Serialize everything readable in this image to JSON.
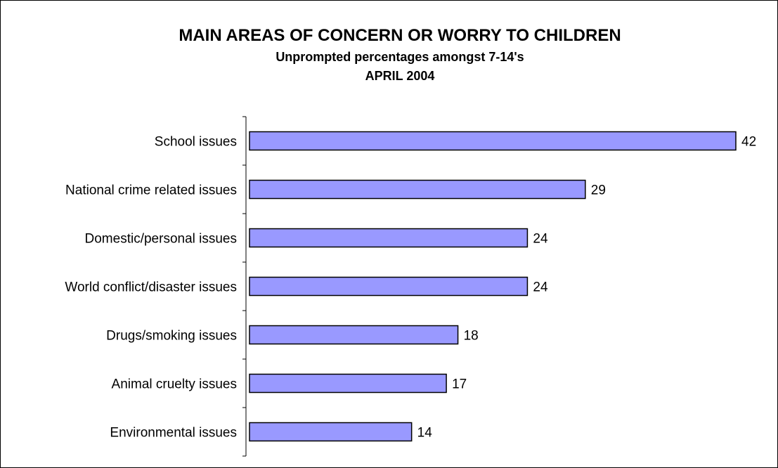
{
  "chart_data": {
    "type": "bar",
    "orientation": "horizontal",
    "title": "MAIN AREAS OF CONCERN OR WORRY TO CHILDREN",
    "subtitle_lines": [
      "Unprompted percentages amongst 7-14's",
      "APRIL 2004"
    ],
    "categories": [
      "School issues",
      "National crime related issues",
      "Domestic/personal issues",
      "World conflict/disaster issues",
      "Drugs/smoking issues",
      "Animal cruelty issues",
      "Environmental issues"
    ],
    "values": [
      42,
      29,
      24,
      24,
      18,
      17,
      14
    ],
    "value_labels": [
      "42",
      "29",
      "24",
      "24",
      "18",
      "17",
      "14"
    ],
    "xlim": [
      0,
      42
    ],
    "grid": false,
    "legend": "none",
    "bar_color": "#9999ff",
    "bar_edge_color": "#000000"
  }
}
